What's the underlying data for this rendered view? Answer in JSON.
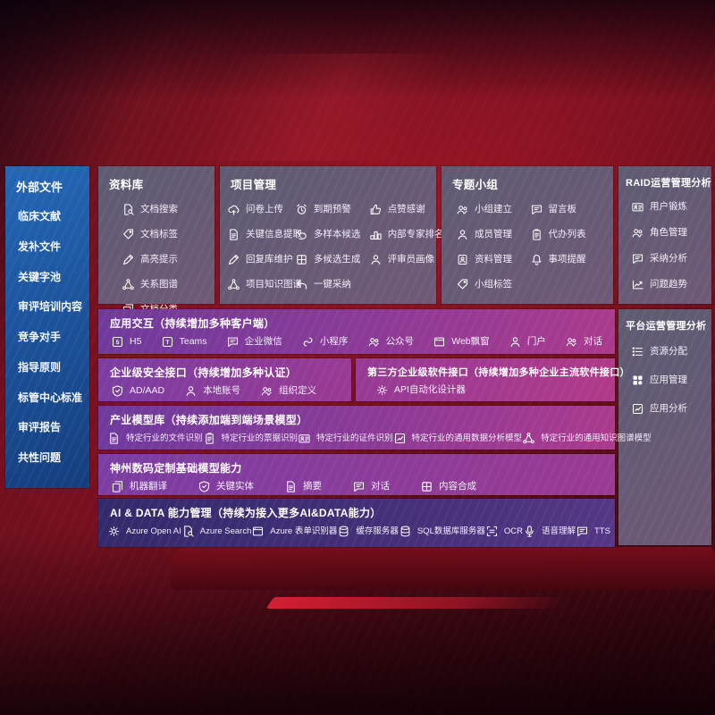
{
  "sidebar": {
    "title": "外部文件",
    "items": [
      "临床文献",
      "发补文件",
      "关键字池",
      "审评培训内容",
      "竞争对手",
      "指导原则",
      "标管中心标准",
      "审评报告",
      "共性问题"
    ]
  },
  "panels": {
    "library": {
      "title": "资料库",
      "items": [
        {
          "icon": "doc-search-icon",
          "label": "文档搜索"
        },
        {
          "icon": "tag-icon",
          "label": "文档标签"
        },
        {
          "icon": "highlighter-icon",
          "label": "高亮提示"
        },
        {
          "icon": "relation-graph-icon",
          "label": "关系图谱"
        },
        {
          "icon": "doc-category-icon",
          "label": "文档分类"
        }
      ]
    },
    "project": {
      "title": "项目管理",
      "items": [
        {
          "icon": "cloud-upload-icon",
          "label": "问卷上传"
        },
        {
          "icon": "alarm-warning-icon",
          "label": "到期预警"
        },
        {
          "icon": "thumb-up-icon",
          "label": "点赞感谢"
        },
        {
          "icon": "key-info-extract-icon",
          "label": "关键信息提取"
        },
        {
          "icon": "multi-sample-icon",
          "label": "多样本候选"
        },
        {
          "icon": "expert-ranking-icon",
          "label": "内部专家排名"
        },
        {
          "icon": "reply-maintain-icon",
          "label": "回复库维护"
        },
        {
          "icon": "multi-candidate-icon",
          "label": "多候选生成"
        },
        {
          "icon": "reviewer-portrait-icon",
          "label": "评审员画像"
        },
        {
          "icon": "project-knowledge-graph-icon",
          "label": "项目知识图谱"
        },
        {
          "icon": "one-click-adopt-icon",
          "label": "一键采纳"
        }
      ]
    },
    "group": {
      "title": "专题小组",
      "items": [
        {
          "icon": "group-create-icon",
          "label": "小组建立"
        },
        {
          "icon": "message-board-icon",
          "label": "留言板"
        },
        {
          "icon": "member-manage-icon",
          "label": "成员管理"
        },
        {
          "icon": "todo-list-icon",
          "label": "代办列表"
        },
        {
          "icon": "material-manage-icon",
          "label": "资料管理"
        },
        {
          "icon": "reminder-bell-icon",
          "label": "事项提醒"
        },
        {
          "icon": "group-tag-icon",
          "label": "小组标签"
        }
      ]
    },
    "raid": {
      "title": "RAID运营管理分析",
      "items": [
        {
          "icon": "user-card-icon",
          "label": "用户锻炼"
        },
        {
          "icon": "role-manage-icon",
          "label": "角色管理"
        },
        {
          "icon": "adoption-analysis-icon",
          "label": "采纳分析"
        },
        {
          "icon": "issue-trend-icon",
          "label": "问题趋势"
        }
      ]
    },
    "platform": {
      "title": "平台运营管理分析",
      "items": [
        {
          "icon": "resource-list-icon",
          "label": "资源分配"
        },
        {
          "icon": "app-grid-icon",
          "label": "应用管理"
        },
        {
          "icon": "app-analysis-icon",
          "label": "应用分析"
        }
      ]
    }
  },
  "rows": {
    "interaction": {
      "title": "应用交互（持续增加多种客户端）",
      "items": [
        {
          "icon": "h5-icon",
          "label": "H5"
        },
        {
          "icon": "teams-icon",
          "label": "Teams"
        },
        {
          "icon": "wechat-work-icon",
          "label": "企业微信"
        },
        {
          "icon": "mini-program-icon",
          "label": "小程序"
        },
        {
          "icon": "official-account-icon",
          "label": "公众号"
        },
        {
          "icon": "web-window-icon",
          "label": "Web飘窗"
        },
        {
          "icon": "portal-icon",
          "label": "门户"
        },
        {
          "icon": "dialog-icon",
          "label": "对话"
        }
      ]
    },
    "security": {
      "title": "企业级安全接口（持续增加多种认证）",
      "items": [
        {
          "icon": "ad-shield-icon",
          "label": "AD/AAD"
        },
        {
          "icon": "local-account-icon",
          "label": "本地账号"
        },
        {
          "icon": "org-definition-icon",
          "label": "组织定义"
        }
      ]
    },
    "thirdparty": {
      "title": "第三方企业级软件接口（持续增加多种企业主流软件接口）",
      "items": [
        {
          "icon": "api-designer-icon",
          "label": "API自动化设计器"
        }
      ]
    },
    "industry": {
      "title": "产业模型库（持续添加端到端场景模型）",
      "items": [
        {
          "icon": "file-recognize-icon",
          "label": "特定行业的文件识别"
        },
        {
          "icon": "receipt-recognize-icon",
          "label": "特定行业的票据识别"
        },
        {
          "icon": "certificate-recognize-icon",
          "label": "特定行业的证件识别"
        },
        {
          "icon": "data-analysis-model-icon",
          "label": "特定行业的通用数据分析模型"
        },
        {
          "icon": "knowledge-graph-model-icon",
          "label": "特定行业的通用知识图谱模型"
        }
      ]
    },
    "base": {
      "title": "神州数码定制基础模型能力",
      "items": [
        {
          "icon": "machine-translate-icon",
          "label": "机器翻译"
        },
        {
          "icon": "key-entity-icon",
          "label": "关键实体"
        },
        {
          "icon": "summary-icon",
          "label": "摘要"
        },
        {
          "icon": "dialogue-icon",
          "label": "对话"
        },
        {
          "icon": "content-compose-icon",
          "label": "内容合成"
        }
      ]
    },
    "aidata": {
      "title": "AI & DATA 能力管理（持续为接入更多AI&DATA能力）",
      "items": [
        {
          "icon": "openai-icon",
          "label": "Azure Open AI"
        },
        {
          "icon": "azure-search-icon",
          "label": "Azure Search"
        },
        {
          "icon": "form-recognizer-icon",
          "label": "Azure 表单识别器"
        },
        {
          "icon": "cache-server-icon",
          "label": "缓存服务器"
        },
        {
          "icon": "sql-server-icon",
          "label": "SQL数据库服务器"
        },
        {
          "icon": "ocr-icon",
          "label": "OCR"
        },
        {
          "icon": "speech-understanding-icon",
          "label": "语音理解"
        },
        {
          "icon": "tts-icon",
          "label": "TTS"
        }
      ]
    }
  },
  "colors": {
    "sidebar_blue": "#1d5ca8",
    "panel_gray": "#60617a",
    "row_purple": "#7a3da0",
    "row_magenta": "#ab3a8c",
    "row_indigo": "#3b2f72",
    "background_red": "#6d0f1e"
  }
}
